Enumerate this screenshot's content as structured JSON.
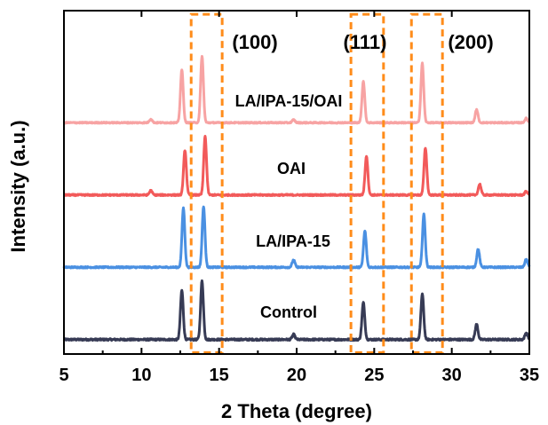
{
  "chart_data": {
    "type": "line",
    "xlabel": "2 Theta (degree)",
    "ylabel": "Intensity (a.u.)",
    "xlim": [
      5,
      35
    ],
    "xticks": [
      5,
      10,
      15,
      20,
      25,
      30,
      35
    ],
    "y_tick_labels_shown": false,
    "grid": false,
    "series": [
      {
        "name": "Control",
        "color": "#373b55",
        "baseline": 0.0,
        "noise": 0.012,
        "peaks": [
          {
            "x": 12.6,
            "h": 0.68
          },
          {
            "x": 13.9,
            "h": 0.81
          },
          {
            "x": 19.8,
            "h": 0.07
          },
          {
            "x": 24.3,
            "h": 0.51
          },
          {
            "x": 28.1,
            "h": 0.63
          },
          {
            "x": 31.6,
            "h": 0.21
          },
          {
            "x": 34.8,
            "h": 0.09
          }
        ]
      },
      {
        "name": "LA/IPA-15",
        "color": "#4a90e2",
        "baseline": 1.0,
        "noise": 0.01,
        "peaks": [
          {
            "x": 12.7,
            "h": 0.82
          },
          {
            "x": 14.0,
            "h": 0.84
          },
          {
            "x": 19.8,
            "h": 0.1
          },
          {
            "x": 24.4,
            "h": 0.5
          },
          {
            "x": 28.2,
            "h": 0.73
          },
          {
            "x": 31.7,
            "h": 0.25
          },
          {
            "x": 34.8,
            "h": 0.11
          }
        ]
      },
      {
        "name": "OAI",
        "color": "#f25a5a",
        "baseline": 2.0,
        "noise": 0.01,
        "peaks": [
          {
            "x": 10.6,
            "h": 0.06
          },
          {
            "x": 12.8,
            "h": 0.62
          },
          {
            "x": 14.1,
            "h": 0.81
          },
          {
            "x": 24.5,
            "h": 0.54
          },
          {
            "x": 28.3,
            "h": 0.65
          },
          {
            "x": 31.8,
            "h": 0.15
          },
          {
            "x": 34.8,
            "h": 0.05
          }
        ]
      },
      {
        "name": "LA/IPA-15/OAI",
        "color": "#f7a3a3",
        "baseline": 3.0,
        "noise": 0.008,
        "peaks": [
          {
            "x": 10.6,
            "h": 0.05
          },
          {
            "x": 12.6,
            "h": 0.73
          },
          {
            "x": 13.9,
            "h": 0.92
          },
          {
            "x": 19.8,
            "h": 0.04
          },
          {
            "x": 24.3,
            "h": 0.57
          },
          {
            "x": 28.1,
            "h": 0.82
          },
          {
            "x": 31.6,
            "h": 0.18
          },
          {
            "x": 34.8,
            "h": 0.06
          }
        ]
      }
    ],
    "annotations": [
      {
        "label": "(100)",
        "x_range": [
          13.2,
          15.2
        ]
      },
      {
        "label": "(111)",
        "x_range": [
          23.5,
          25.6
        ]
      },
      {
        "label": "(200)",
        "x_range": [
          27.4,
          29.4
        ]
      }
    ],
    "annotation_box_color": "#ff8c1a",
    "ylim": [
      -0.2,
      4.55
    ]
  }
}
